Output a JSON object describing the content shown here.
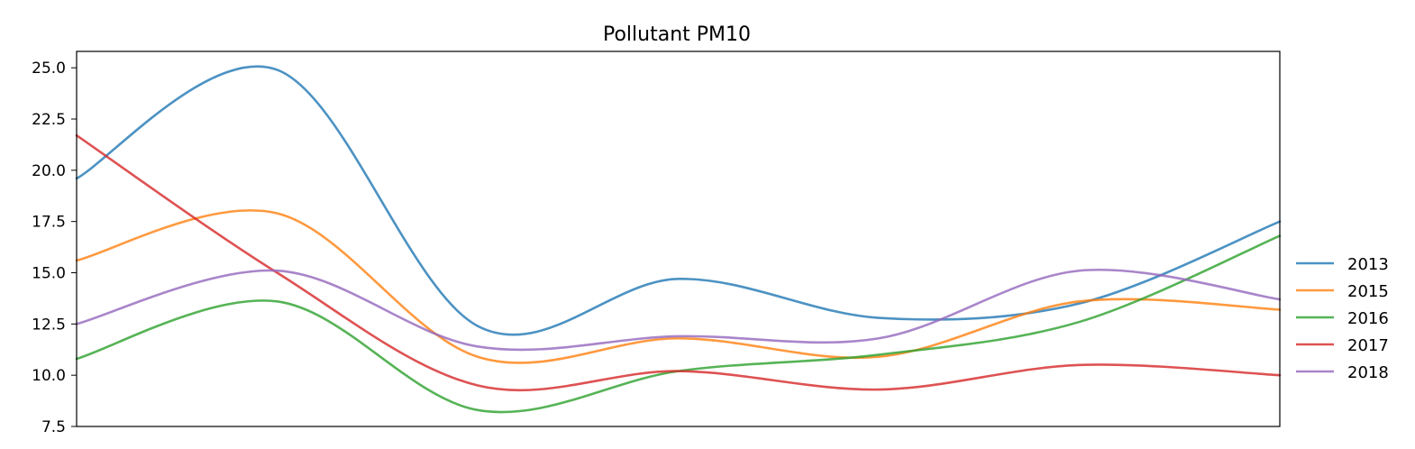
{
  "chart_data": {
    "type": "line",
    "title": "Pollutant PM10",
    "xlabel": "",
    "ylabel": "",
    "x": [
      0,
      1,
      2,
      3,
      4,
      5,
      6
    ],
    "x_tick_labels": [],
    "ylim": [
      7.5,
      25.8
    ],
    "y_ticks": [
      7.5,
      10.0,
      12.5,
      15.0,
      17.5,
      20.0,
      22.5,
      25.0
    ],
    "y_tick_labels": [
      "7.5",
      "10.0",
      "12.5",
      "15.0",
      "17.5",
      "20.0",
      "22.5",
      "25.0"
    ],
    "grid": false,
    "legend_position": "right-outside",
    "series": [
      {
        "name": "2013",
        "color": "#1f77b4",
        "values": [
          19.6,
          24.9,
          12.4,
          14.7,
          12.8,
          13.5,
          17.5
        ]
      },
      {
        "name": "2015",
        "color": "#ff7f0e",
        "values": [
          15.6,
          17.9,
          10.9,
          11.8,
          10.9,
          13.6,
          13.2
        ]
      },
      {
        "name": "2016",
        "color": "#2ca02c",
        "values": [
          10.8,
          13.6,
          8.3,
          10.2,
          11.0,
          12.6,
          16.8
        ]
      },
      {
        "name": "2017",
        "color": "#d62728",
        "values": [
          21.7,
          15.0,
          9.5,
          10.2,
          9.3,
          10.5,
          10.0
        ]
      },
      {
        "name": "2018",
        "color": "#9467bd",
        "values": [
          12.5,
          15.1,
          11.4,
          11.9,
          11.8,
          15.1,
          13.7
        ]
      }
    ]
  }
}
